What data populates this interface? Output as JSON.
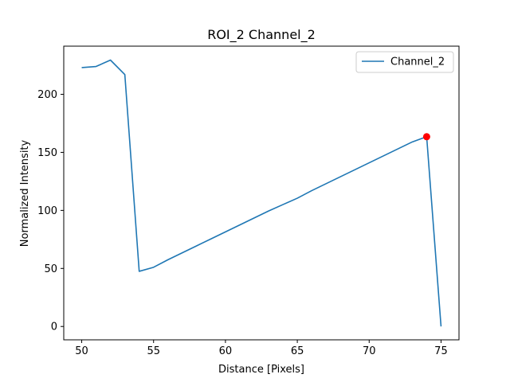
{
  "chart_data": {
    "type": "line",
    "title": "ROI_2 Channel_2",
    "xlabel": "Distance [Pixels]",
    "ylabel": "Normalized Intensity",
    "xlim": [
      48.75,
      76.25
    ],
    "ylim": [
      -11.5,
      241.5
    ],
    "xticks": [
      50,
      55,
      60,
      65,
      70,
      75
    ],
    "yticks": [
      0,
      50,
      100,
      150,
      200
    ],
    "grid": false,
    "legend_position": "top-right",
    "series": [
      {
        "name": "Channel_2",
        "color": "#1f77b4",
        "x": [
          50,
          51,
          52,
          53,
          54,
          55,
          56,
          57,
          58,
          59,
          60,
          61,
          62,
          63,
          64,
          65,
          66,
          67,
          68,
          69,
          70,
          71,
          72,
          73,
          74,
          75
        ],
        "y": [
          223,
          224,
          229.5,
          217,
          47.5,
          51,
          57.5,
          63.5,
          69.5,
          75.5,
          81.5,
          87.5,
          93.5,
          99.5,
          105,
          110.5,
          117,
          123,
          129,
          135,
          141,
          147,
          153,
          159,
          163.5,
          0
        ]
      }
    ],
    "marker_points": [
      {
        "x": 74,
        "y": 163.5,
        "color": "#ff0000"
      }
    ]
  }
}
